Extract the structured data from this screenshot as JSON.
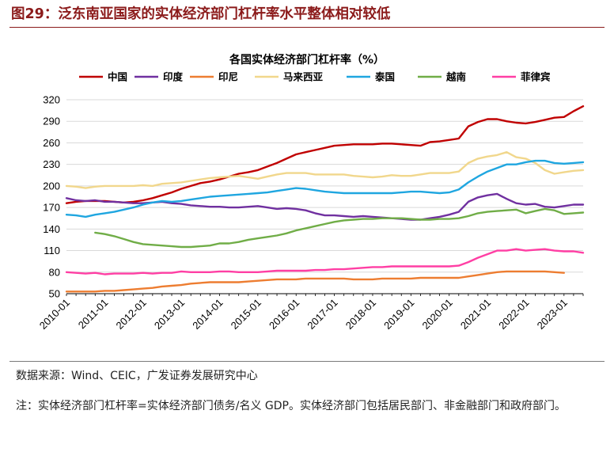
{
  "header": {
    "title": "图29：泛东南亚国家的实体经济部门杠杆率水平整体相对较低"
  },
  "footer": {
    "source": "数据来源：Wind、CEIC，广发证券发展研究中心",
    "note": "注：实体经济部门杠杆率=实体经济部门债务/名义 GDP。实体经济部门包括居民部门、非金融部门和政府部门。"
  },
  "chart_data": {
    "type": "line",
    "title": "各国实体经济部门杠杆率（%）",
    "xlabel": "",
    "ylabel": "",
    "ylim": [
      50,
      320
    ],
    "yticks": [
      50,
      80,
      110,
      140,
      170,
      200,
      230,
      260,
      290,
      320
    ],
    "grid": true,
    "legend_position": "top",
    "x_start": "2010-01",
    "x_frequency": "quarterly",
    "x_tick_labels": [
      "2010-01",
      "2011-01",
      "2012-01",
      "2013-01",
      "2014-01",
      "2015-01",
      "2016-01",
      "2017-01",
      "2018-01",
      "2019-01",
      "2020-01",
      "2021-01",
      "2022-01",
      "2023-01"
    ],
    "series": [
      {
        "name": "中国",
        "color": "#c00000",
        "values": [
          176,
          178,
          179,
          179,
          179,
          178,
          177,
          178,
          180,
          183,
          187,
          191,
          196,
          200,
          204,
          206,
          209,
          213,
          217,
          219,
          222,
          227,
          232,
          238,
          244,
          247,
          250,
          253,
          256,
          257,
          258,
          258,
          258,
          259,
          259,
          258,
          257,
          256,
          261,
          262,
          264,
          266,
          283,
          289,
          293,
          293,
          290,
          288,
          287,
          289,
          292,
          295,
          296,
          304,
          311
        ]
      },
      {
        "name": "印度",
        "color": "#7030a0",
        "values": [
          183,
          180,
          179,
          180,
          178,
          178,
          177,
          176,
          176,
          177,
          178,
          176,
          175,
          173,
          172,
          171,
          171,
          170,
          170,
          171,
          172,
          170,
          168,
          169,
          168,
          166,
          162,
          159,
          159,
          158,
          157,
          158,
          157,
          156,
          155,
          154,
          153,
          153,
          155,
          157,
          160,
          164,
          178,
          184,
          187,
          189,
          182,
          176,
          174,
          175,
          171,
          170,
          172,
          174,
          174
        ]
      },
      {
        "name": "印尼",
        "color": "#ed7d31",
        "values": [
          53,
          53,
          53,
          53,
          54,
          54,
          55,
          56,
          57,
          58,
          60,
          61,
          62,
          64,
          65,
          66,
          66,
          66,
          66,
          67,
          68,
          69,
          70,
          70,
          70,
          71,
          71,
          71,
          71,
          71,
          70,
          70,
          70,
          71,
          71,
          71,
          71,
          72,
          72,
          72,
          72,
          72,
          74,
          76,
          78,
          80,
          81,
          81,
          81,
          81,
          81,
          80,
          79,
          null,
          null
        ]
      },
      {
        "name": "马来西亚",
        "color": "#f1d78c",
        "values": [
          200,
          199,
          197,
          199,
          200,
          200,
          200,
          200,
          201,
          200,
          203,
          204,
          205,
          207,
          209,
          211,
          212,
          213,
          214,
          212,
          210,
          213,
          216,
          218,
          218,
          218,
          216,
          216,
          216,
          216,
          214,
          213,
          212,
          213,
          215,
          214,
          214,
          216,
          218,
          218,
          218,
          220,
          232,
          238,
          241,
          243,
          247,
          240,
          238,
          232,
          222,
          217,
          219,
          221,
          222
        ]
      },
      {
        "name": "泰国",
        "color": "#1fa6e0",
        "values": [
          160,
          159,
          157,
          160,
          162,
          164,
          167,
          170,
          174,
          177,
          179,
          178,
          179,
          181,
          183,
          185,
          186,
          187,
          188,
          189,
          190,
          191,
          193,
          195,
          197,
          196,
          194,
          192,
          191,
          190,
          190,
          190,
          190,
          190,
          190,
          191,
          192,
          192,
          191,
          190,
          191,
          195,
          205,
          213,
          220,
          225,
          230,
          230,
          233,
          235,
          235,
          232,
          231,
          232,
          233
        ]
      },
      {
        "name": "越南",
        "color": "#70ad47",
        "values": [
          null,
          null,
          null,
          135,
          133,
          130,
          126,
          122,
          119,
          118,
          117,
          116,
          115,
          115,
          116,
          117,
          120,
          120,
          122,
          125,
          127,
          129,
          131,
          134,
          138,
          141,
          144,
          147,
          150,
          152,
          153,
          154,
          154,
          155,
          155,
          155,
          154,
          153,
          153,
          154,
          154,
          155,
          158,
          162,
          164,
          165,
          166,
          167,
          162,
          165,
          168,
          166,
          161,
          162,
          163
        ]
      },
      {
        "name": "菲律宾",
        "color": "#ff3fa4",
        "values": [
          80,
          79,
          78,
          79,
          77,
          78,
          78,
          78,
          79,
          78,
          79,
          79,
          81,
          80,
          80,
          80,
          81,
          81,
          80,
          80,
          80,
          81,
          82,
          82,
          82,
          82,
          83,
          83,
          84,
          84,
          85,
          86,
          87,
          87,
          88,
          88,
          88,
          88,
          88,
          88,
          88,
          89,
          94,
          100,
          105,
          110,
          110,
          112,
          110,
          111,
          112,
          110,
          109,
          109,
          107
        ]
      }
    ]
  }
}
